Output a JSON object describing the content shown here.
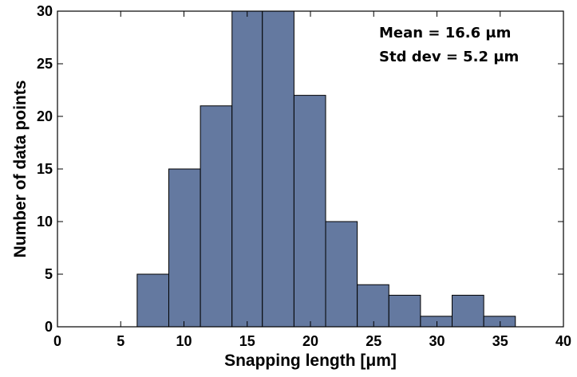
{
  "chart_data": {
    "type": "bar",
    "subtype": "histogram",
    "title": "",
    "xlabel": "Snapping length [μm]",
    "ylabel": "Number of data points",
    "xlim": [
      0,
      40
    ],
    "ylim": [
      0,
      30
    ],
    "xticks": [
      0,
      5,
      10,
      15,
      20,
      25,
      30,
      35,
      40
    ],
    "yticks": [
      0,
      5,
      10,
      15,
      20,
      25,
      30
    ],
    "bins": [
      {
        "x0": 6.3,
        "x1": 8.8,
        "value": 5
      },
      {
        "x0": 8.8,
        "x1": 11.3,
        "value": 15
      },
      {
        "x0": 11.3,
        "x1": 13.8,
        "value": 21
      },
      {
        "x0": 13.8,
        "x1": 16.2,
        "value": 30
      },
      {
        "x0": 16.2,
        "x1": 18.7,
        "value": 30
      },
      {
        "x0": 18.7,
        "x1": 21.2,
        "value": 22
      },
      {
        "x0": 21.2,
        "x1": 23.7,
        "value": 10
      },
      {
        "x0": 23.7,
        "x1": 26.2,
        "value": 4
      },
      {
        "x0": 26.2,
        "x1": 28.7,
        "value": 3
      },
      {
        "x0": 28.7,
        "x1": 31.2,
        "value": 1
      },
      {
        "x0": 31.2,
        "x1": 33.7,
        "value": 3
      },
      {
        "x0": 33.7,
        "x1": 36.2,
        "value": 1
      }
    ],
    "bar_color": "#6479a0",
    "bar_edge_color": "#000000",
    "grid": false,
    "annotations": [
      "Mean = 16.6 μm",
      "Std dev = 5.2 μm"
    ]
  }
}
